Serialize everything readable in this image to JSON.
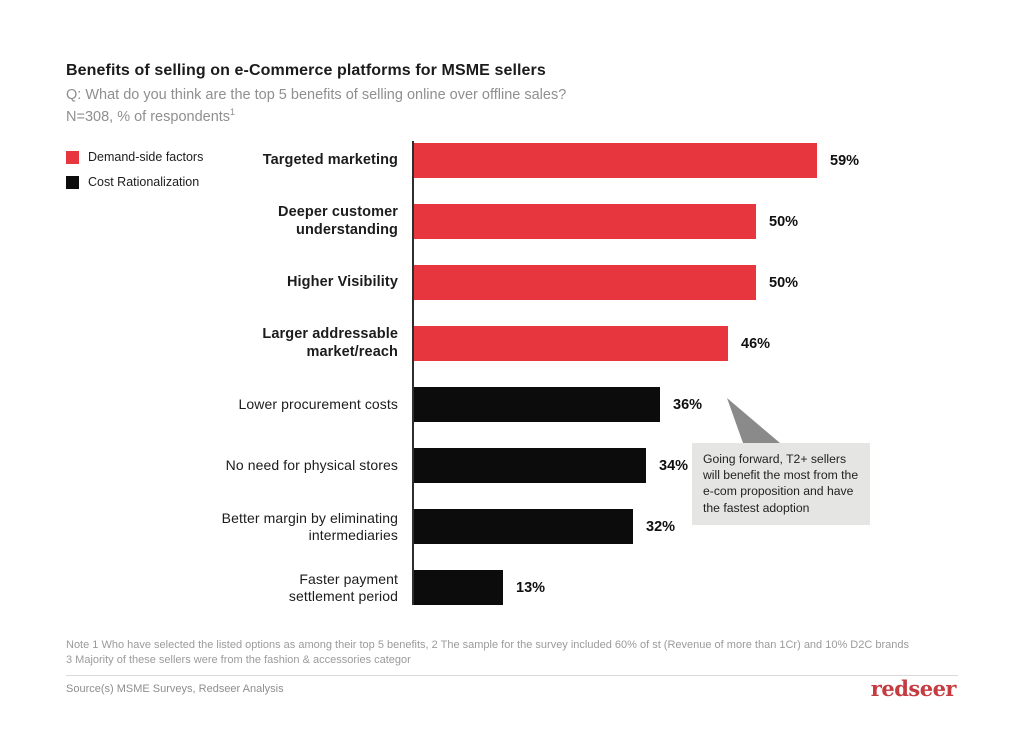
{
  "header": {
    "title": "Benefits of selling on e-Commerce platforms for MSME sellers",
    "subtitle": "Q: What do you think are the top 5 benefits of selling online over offline sales?",
    "sample_line": "N=308, % of respondents",
    "sample_superscript": "1"
  },
  "legend": {
    "items": [
      {
        "label": "Demand-side factors",
        "color": "#e8363f"
      },
      {
        "label": "Cost Rationalization",
        "color": "#0c0c0c"
      }
    ]
  },
  "chart_data": {
    "type": "bar",
    "orientation": "horizontal",
    "title": "Benefits of selling on e-Commerce platforms for MSME sellers",
    "xlabel": "% of respondents",
    "ylabel": "",
    "xlim": [
      0,
      62
    ],
    "grid": false,
    "legend_position": "top-left",
    "unit": "%",
    "categories": [
      "Targeted marketing",
      "Deeper customer\nunderstanding",
      "Higher Visibility",
      "Larger addressable\nmarket/reach",
      "Lower procurement costs",
      "No need for physical stores",
      "Better margin by eliminating\nintermediaries",
      "Faster payment\nsettlement period"
    ],
    "values": [
      59,
      50,
      50,
      46,
      36,
      34,
      32,
      13
    ],
    "groups": [
      "demand",
      "demand",
      "demand",
      "demand",
      "cost",
      "cost",
      "cost",
      "cost"
    ],
    "series_colors": {
      "demand": "#e8363f",
      "cost": "#0c0c0c"
    },
    "series_names": {
      "demand": "Demand-side factors",
      "cost": "Cost Rationalization"
    }
  },
  "callout": {
    "text": "Going forward, T2+ sellers will benefit the most from the e-com proposition and have the fastest adoption",
    "bg": "#e5e5e3",
    "pointer_color": "#8a8a8a"
  },
  "notes": "Note 1 Who have selected the listed options as among their top 5 benefits, 2 The sample for the survey included 60% of st (Revenue of more than 1Cr) and 10% D2C brands\n3 Majority of these sellers were from the fashion & accessories categor",
  "footer": {
    "source": "Source(s) MSME Surveys, Redseer Analysis",
    "logo": "redseer"
  }
}
